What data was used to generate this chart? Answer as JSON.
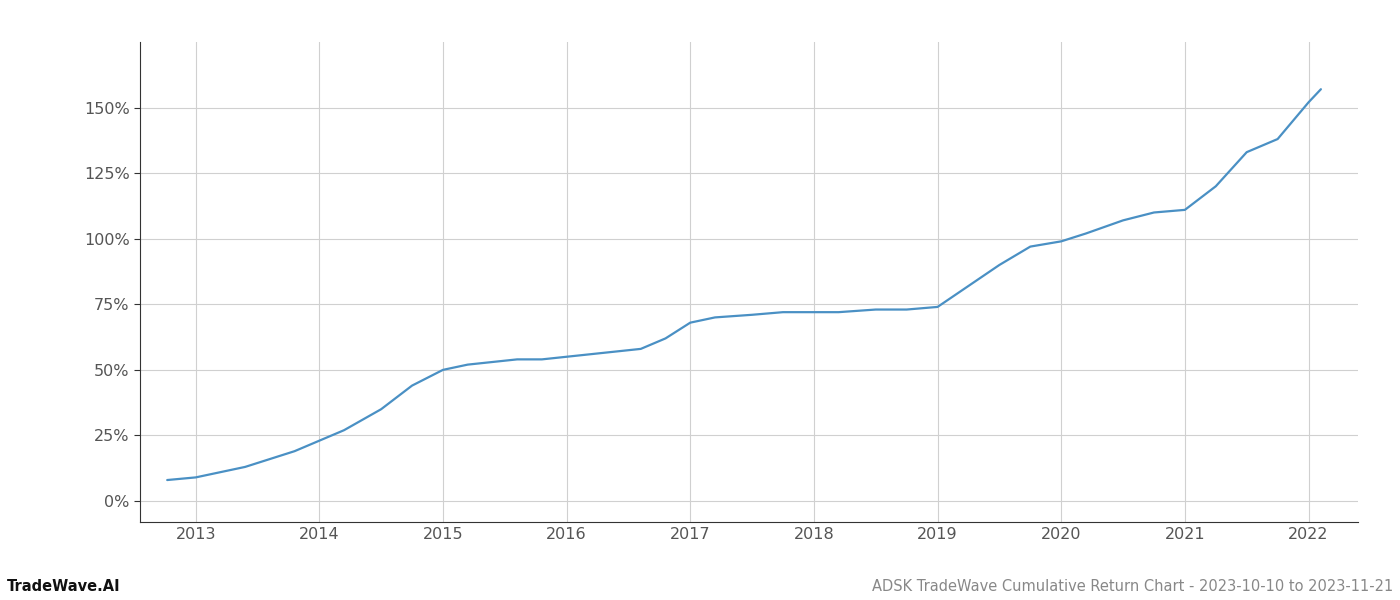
{
  "x_years": [
    2012.77,
    2013.0,
    2013.2,
    2013.4,
    2013.6,
    2013.8,
    2014.0,
    2014.2,
    2014.5,
    2014.75,
    2015.0,
    2015.2,
    2015.4,
    2015.6,
    2015.8,
    2016.0,
    2016.2,
    2016.4,
    2016.6,
    2016.8,
    2017.0,
    2017.2,
    2017.5,
    2017.75,
    2018.0,
    2018.2,
    2018.5,
    2018.75,
    2019.0,
    2019.25,
    2019.5,
    2019.75,
    2020.0,
    2020.2,
    2020.5,
    2020.75,
    2021.0,
    2021.25,
    2021.5,
    2021.75,
    2022.0,
    2022.1
  ],
  "y_values": [
    8,
    9,
    11,
    13,
    16,
    19,
    23,
    27,
    35,
    44,
    50,
    52,
    53,
    54,
    54,
    55,
    56,
    57,
    58,
    62,
    68,
    70,
    71,
    72,
    72,
    72,
    73,
    73,
    74,
    82,
    90,
    97,
    99,
    102,
    107,
    110,
    111,
    120,
    133,
    138,
    152,
    157
  ],
  "line_color": "#4a90c4",
  "line_width": 1.6,
  "background_color": "#ffffff",
  "grid_color": "#d0d0d0",
  "yticks": [
    0,
    25,
    50,
    75,
    100,
    125,
    150
  ],
  "xticks": [
    2013,
    2014,
    2015,
    2016,
    2017,
    2018,
    2019,
    2020,
    2021,
    2022
  ],
  "ylim": [
    -8,
    175
  ],
  "xlim": [
    2012.55,
    2022.4
  ],
  "footer_left": "TradeWave.AI",
  "footer_right": "ADSK TradeWave Cumulative Return Chart - 2023-10-10 to 2023-11-21",
  "footer_color_left": "#111111",
  "footer_color_right": "#888888",
  "footer_fontsize": 10.5,
  "left_spine_color": "#333333",
  "bottom_spine_color": "#333333",
  "tick_color": "#555555",
  "tick_fontsize": 11.5
}
